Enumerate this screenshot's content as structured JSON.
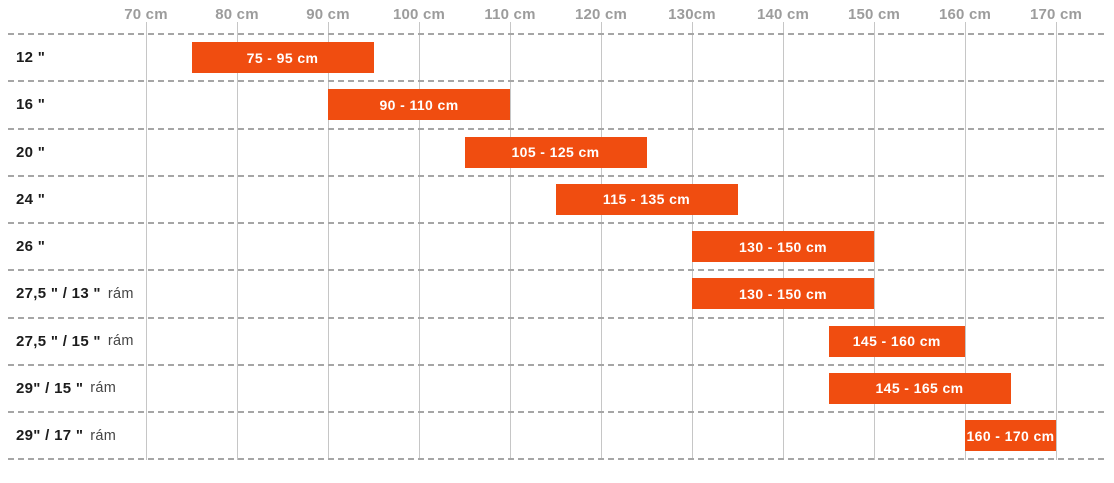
{
  "chart_data": {
    "type": "bar",
    "subtype": "horizontal-range-bars",
    "title": "",
    "xlabel": "",
    "ylabel": "",
    "grid": {
      "vertical": "solid",
      "horizontal": "dashed"
    },
    "legend_position": "none",
    "x_axis": {
      "unit": "cm",
      "min": 70,
      "max": 170,
      "step": 10,
      "tick_labels": [
        "70 cm",
        "80 cm",
        "90 cm",
        "100 cm",
        "110 cm",
        "120 cm",
        "130cm",
        "140 cm",
        "150 cm",
        "160 cm",
        "170 cm"
      ]
    },
    "rows": [
      {
        "wheel": "12 \"",
        "frame": "",
        "range_cm": [
          75,
          95
        ],
        "bar_label": "75 - 95 cm"
      },
      {
        "wheel": "16 \"",
        "frame": "",
        "range_cm": [
          90,
          110
        ],
        "bar_label": "90 - 110 cm"
      },
      {
        "wheel": "20 \"",
        "frame": "",
        "range_cm": [
          105,
          125
        ],
        "bar_label": "105 - 125 cm"
      },
      {
        "wheel": "24 \"",
        "frame": "",
        "range_cm": [
          115,
          135
        ],
        "bar_label": "115 - 135 cm"
      },
      {
        "wheel": "26 \"",
        "frame": "",
        "range_cm": [
          130,
          150
        ],
        "bar_label": "130 - 150 cm"
      },
      {
        "wheel": "27,5 \" / 13 \"",
        "frame": "rám",
        "range_cm": [
          130,
          150
        ],
        "bar_label": "130 - 150 cm"
      },
      {
        "wheel": "27,5 \" / 15 \"",
        "frame": "rám",
        "range_cm": [
          145,
          160
        ],
        "bar_label": "145 -  160 cm"
      },
      {
        "wheel": "29\" / 15 \"",
        "frame": "rám",
        "range_cm": [
          145,
          165
        ],
        "bar_label": "145 - 165 cm"
      },
      {
        "wheel": "29\" / 17 \"",
        "frame": "rám",
        "range_cm": [
          160,
          170
        ],
        "bar_label": "160 - 170 cm"
      }
    ],
    "colors": {
      "background": "#ffffff",
      "bar": "#f04d10",
      "bar_text": "#ffffff",
      "axis_label": "#9c9c9c",
      "row_label": "#1c1c1c",
      "row_label_suffix": "#454545",
      "gridline_vertical": "#c6c6c6",
      "gridline_dashed": "#a6a6a6"
    }
  }
}
